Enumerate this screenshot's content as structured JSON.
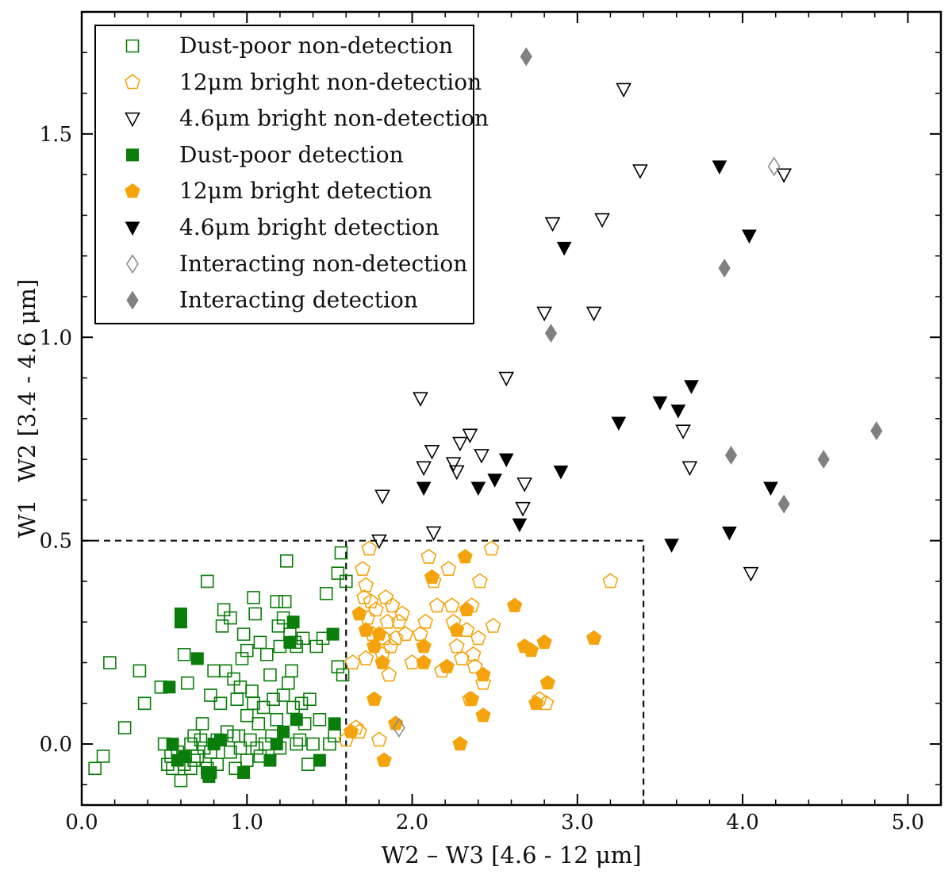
{
  "colors": {
    "dust_poor": "#0a7d0a",
    "bright12": "#f5a30c",
    "bright46": "#000000",
    "interacting_open": "#8c8c8c",
    "interacting_fill": "#808080"
  },
  "chart_data": {
    "type": "scatter",
    "title": "",
    "xlabel": "W2 – W3 [4.6 - 12 μm]",
    "ylabel_w1": "W1",
    "ylabel_rest": "W2 [3.4 - 4.6 μm]",
    "xlim": [
      0.0,
      5.2
    ],
    "ylim": [
      -0.15,
      1.8
    ],
    "x_ticks": [
      "0.0",
      "1.0",
      "2.0",
      "3.0",
      "4.0",
      "5.0"
    ],
    "y_ticks": [
      "0.0",
      "0.5",
      "1.0",
      "1.5"
    ],
    "box": {
      "x0": 1.6,
      "x1": 3.4,
      "y_top": 0.5
    },
    "legend_position": "top-left",
    "series": [
      {
        "name": "Dust-poor non-detection",
        "marker": "square",
        "filled": false,
        "color": "dust_poor",
        "points": [
          [
            0.08,
            -0.06
          ],
          [
            0.13,
            -0.03
          ],
          [
            0.17,
            0.2
          ],
          [
            0.26,
            0.04
          ],
          [
            0.35,
            0.18
          ],
          [
            0.38,
            0.1
          ],
          [
            0.48,
            0.14
          ],
          [
            0.5,
            0.0
          ],
          [
            0.52,
            -0.05
          ],
          [
            0.54,
            -0.03
          ],
          [
            0.55,
            -0.06
          ],
          [
            0.58,
            -0.02
          ],
          [
            0.6,
            -0.09
          ],
          [
            0.62,
            -0.05
          ],
          [
            0.62,
            0.22
          ],
          [
            0.64,
            0.15
          ],
          [
            0.66,
            -0.06
          ],
          [
            0.66,
            0.0
          ],
          [
            0.68,
            -0.04
          ],
          [
            0.68,
            0.02
          ],
          [
            0.7,
            -0.03
          ],
          [
            0.72,
            0.01
          ],
          [
            0.73,
            0.05
          ],
          [
            0.74,
            -0.01
          ],
          [
            0.76,
            -0.06
          ],
          [
            0.76,
            0.4
          ],
          [
            0.78,
            0.12
          ],
          [
            0.78,
            -0.02
          ],
          [
            0.8,
            0.18
          ],
          [
            0.82,
            0.01
          ],
          [
            0.82,
            -0.05
          ],
          [
            0.84,
            0.1
          ],
          [
            0.85,
            0.29
          ],
          [
            0.86,
            0.33
          ],
          [
            0.87,
            0.18
          ],
          [
            0.88,
            0.03
          ],
          [
            0.9,
            -0.02
          ],
          [
            0.9,
            0.31
          ],
          [
            0.92,
            0.16
          ],
          [
            0.92,
            0.02
          ],
          [
            0.93,
            -0.06
          ],
          [
            0.94,
            0.11
          ],
          [
            0.95,
            0.02
          ],
          [
            0.96,
            -0.01
          ],
          [
            0.96,
            0.14
          ],
          [
            0.97,
            0.21
          ],
          [
            0.98,
            0.27
          ],
          [
            1.0,
            0.23
          ],
          [
            1.0,
            -0.04
          ],
          [
            1.0,
            0.07
          ],
          [
            1.02,
            0.01
          ],
          [
            1.03,
            0.13
          ],
          [
            1.04,
            0.1
          ],
          [
            1.04,
            0.36
          ],
          [
            1.05,
            0.32
          ],
          [
            1.06,
            -0.01
          ],
          [
            1.07,
            0.05
          ],
          [
            1.08,
            -0.03
          ],
          [
            1.08,
            0.25
          ],
          [
            1.1,
            0.09
          ],
          [
            1.11,
            0.0
          ],
          [
            1.12,
            0.22
          ],
          [
            1.14,
            0.17
          ],
          [
            1.15,
            0.02
          ],
          [
            1.16,
            0.11
          ],
          [
            1.18,
            0.06
          ],
          [
            1.18,
            0.35
          ],
          [
            1.19,
            0.29
          ],
          [
            1.2,
            -0.01
          ],
          [
            1.2,
            0.24
          ],
          [
            1.22,
            0.12
          ],
          [
            1.22,
            0.31
          ],
          [
            1.23,
            0.35
          ],
          [
            1.24,
            0.45
          ],
          [
            1.25,
            0.15
          ],
          [
            1.26,
            0.27
          ],
          [
            1.27,
            0.18
          ],
          [
            1.28,
            0.09
          ],
          [
            1.29,
            0.25
          ],
          [
            1.3,
            0.0
          ],
          [
            1.3,
            0.24
          ],
          [
            1.32,
            0.01
          ],
          [
            1.33,
            0.1
          ],
          [
            1.34,
            0.26
          ],
          [
            1.35,
            0.05
          ],
          [
            1.37,
            -0.05
          ],
          [
            1.38,
            0.11
          ],
          [
            1.4,
            0.0
          ],
          [
            1.42,
            0.24
          ],
          [
            1.44,
            0.06
          ],
          [
            1.46,
            0.26
          ],
          [
            1.48,
            0.37
          ],
          [
            1.5,
            0.0
          ],
          [
            1.53,
            0.02
          ],
          [
            1.55,
            0.42
          ],
          [
            1.55,
            0.19
          ],
          [
            1.57,
            0.47
          ],
          [
            1.58,
            0.17
          ],
          [
            1.6,
            0.4
          ]
        ]
      },
      {
        "name": "12μm bright non-detection",
        "marker": "pentagon",
        "filled": false,
        "color": "bright12",
        "points": [
          [
            1.6,
            0.01
          ],
          [
            1.64,
            0.2
          ],
          [
            1.66,
            0.04
          ],
          [
            1.68,
            0.03
          ],
          [
            1.7,
            0.43
          ],
          [
            1.71,
            0.36
          ],
          [
            1.72,
            0.39
          ],
          [
            1.72,
            0.21
          ],
          [
            1.73,
            0.31
          ],
          [
            1.74,
            0.48
          ],
          [
            1.75,
            0.35
          ],
          [
            1.76,
            0.27
          ],
          [
            1.78,
            0.33
          ],
          [
            1.8,
            0.01
          ],
          [
            1.82,
            0.22
          ],
          [
            1.83,
            0.26
          ],
          [
            1.84,
            0.36
          ],
          [
            1.85,
            0.3
          ],
          [
            1.86,
            0.17
          ],
          [
            1.87,
            0.24
          ],
          [
            1.88,
            0.34
          ],
          [
            1.9,
            0.26
          ],
          [
            1.92,
            0.3
          ],
          [
            1.94,
            0.32
          ],
          [
            1.96,
            0.27
          ],
          [
            2.0,
            0.2
          ],
          [
            2.05,
            0.27
          ],
          [
            2.08,
            0.3
          ],
          [
            2.1,
            0.46
          ],
          [
            2.13,
            0.4
          ],
          [
            2.15,
            0.34
          ],
          [
            2.18,
            0.18
          ],
          [
            2.22,
            0.43
          ],
          [
            2.24,
            0.34
          ],
          [
            2.25,
            0.3
          ],
          [
            2.27,
            0.24
          ],
          [
            2.3,
            0.21
          ],
          [
            2.33,
            0.28
          ],
          [
            2.35,
            0.11
          ],
          [
            2.36,
            0.34
          ],
          [
            2.37,
            0.22
          ],
          [
            2.38,
            0.19
          ],
          [
            2.4,
            0.26
          ],
          [
            2.41,
            0.4
          ],
          [
            2.43,
            0.15
          ],
          [
            2.48,
            0.48
          ],
          [
            2.49,
            0.29
          ],
          [
            2.77,
            0.11
          ],
          [
            2.81,
            0.1
          ],
          [
            3.2,
            0.4
          ]
        ]
      },
      {
        "name": "4.6μm bright non-detection",
        "marker": "triangle-down",
        "filled": false,
        "color": "bright46",
        "points": [
          [
            1.8,
            0.5
          ],
          [
            1.82,
            0.61
          ],
          [
            2.05,
            0.85
          ],
          [
            2.07,
            0.68
          ],
          [
            2.12,
            0.72
          ],
          [
            2.13,
            0.52
          ],
          [
            2.25,
            0.69
          ],
          [
            2.27,
            0.67
          ],
          [
            2.29,
            0.74
          ],
          [
            2.35,
            0.76
          ],
          [
            2.42,
            0.71
          ],
          [
            2.57,
            0.9
          ],
          [
            2.67,
            0.58
          ],
          [
            2.68,
            0.64
          ],
          [
            2.8,
            1.06
          ],
          [
            2.85,
            1.28
          ],
          [
            3.1,
            1.06
          ],
          [
            3.15,
            1.29
          ],
          [
            3.28,
            1.61
          ],
          [
            3.38,
            1.41
          ],
          [
            3.64,
            0.77
          ],
          [
            3.68,
            0.68
          ],
          [
            4.05,
            0.42
          ],
          [
            4.25,
            1.4
          ]
        ]
      },
      {
        "name": "Dust-poor detection",
        "marker": "square",
        "filled": true,
        "color": "dust_poor",
        "points": [
          [
            0.53,
            0.14
          ],
          [
            0.55,
            0.0
          ],
          [
            0.58,
            -0.04
          ],
          [
            0.6,
            0.32
          ],
          [
            0.6,
            0.3
          ],
          [
            0.62,
            -0.03
          ],
          [
            0.7,
            0.21
          ],
          [
            0.76,
            -0.07
          ],
          [
            0.77,
            -0.08
          ],
          [
            0.78,
            -0.07
          ],
          [
            0.8,
            0.0
          ],
          [
            0.84,
            0.01
          ],
          [
            0.98,
            -0.07
          ],
          [
            1.14,
            -0.04
          ],
          [
            1.18,
            0.0
          ],
          [
            1.22,
            0.03
          ],
          [
            1.26,
            0.25
          ],
          [
            1.28,
            0.3
          ],
          [
            1.3,
            0.06
          ],
          [
            1.44,
            -0.04
          ],
          [
            1.52,
            0.27
          ],
          [
            1.53,
            0.05
          ]
        ]
      },
      {
        "name": "12μm bright detection",
        "marker": "pentagon",
        "filled": true,
        "color": "bright12",
        "points": [
          [
            1.63,
            0.03
          ],
          [
            1.68,
            0.32
          ],
          [
            1.72,
            0.28
          ],
          [
            1.77,
            0.24
          ],
          [
            1.77,
            0.11
          ],
          [
            1.8,
            0.27
          ],
          [
            1.82,
            0.2
          ],
          [
            1.83,
            -0.04
          ],
          [
            1.9,
            0.05
          ],
          [
            2.07,
            0.24
          ],
          [
            2.07,
            0.2
          ],
          [
            2.12,
            0.41
          ],
          [
            2.21,
            0.19
          ],
          [
            2.27,
            0.28
          ],
          [
            2.29,
            0.0
          ],
          [
            2.32,
            0.46
          ],
          [
            2.33,
            0.33
          ],
          [
            2.36,
            0.11
          ],
          [
            2.43,
            0.17
          ],
          [
            2.43,
            0.07
          ],
          [
            2.62,
            0.34
          ],
          [
            2.68,
            0.24
          ],
          [
            2.72,
            0.23
          ],
          [
            2.75,
            0.1
          ],
          [
            2.8,
            0.25
          ],
          [
            2.82,
            0.15
          ],
          [
            3.1,
            0.26
          ]
        ]
      },
      {
        "name": "4.6μm bright detection",
        "marker": "triangle-down",
        "filled": true,
        "color": "bright46",
        "points": [
          [
            2.07,
            0.63
          ],
          [
            2.4,
            0.63
          ],
          [
            2.5,
            0.65
          ],
          [
            2.57,
            0.7
          ],
          [
            2.65,
            0.54
          ],
          [
            2.9,
            0.67
          ],
          [
            2.92,
            1.22
          ],
          [
            3.25,
            0.79
          ],
          [
            3.5,
            0.84
          ],
          [
            3.57,
            0.49
          ],
          [
            3.61,
            0.82
          ],
          [
            3.69,
            0.88
          ],
          [
            3.86,
            1.42
          ],
          [
            3.92,
            0.52
          ],
          [
            4.04,
            1.25
          ],
          [
            4.17,
            0.63
          ]
        ]
      },
      {
        "name": "Interacting non-detection",
        "marker": "diamond",
        "filled": false,
        "color": "interacting_open",
        "points": [
          [
            1.92,
            0.04
          ],
          [
            4.19,
            1.42
          ]
        ]
      },
      {
        "name": "Interacting detection",
        "marker": "diamond",
        "filled": true,
        "color": "interacting_fill",
        "points": [
          [
            2.69,
            1.69
          ],
          [
            2.84,
            1.01
          ],
          [
            3.89,
            1.17
          ],
          [
            3.93,
            0.71
          ],
          [
            4.25,
            0.59
          ],
          [
            4.49,
            0.7
          ],
          [
            4.81,
            0.77
          ]
        ]
      }
    ]
  }
}
